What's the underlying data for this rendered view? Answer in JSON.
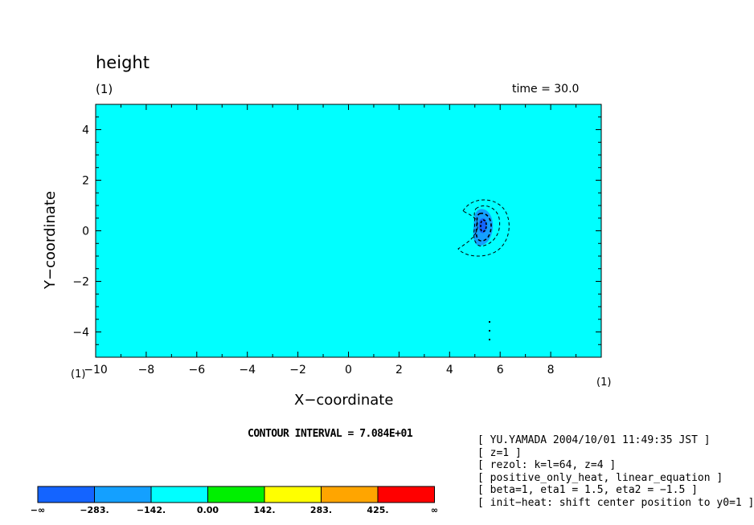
{
  "chart_data": {
    "type": "contour",
    "title": "height",
    "subtitle_left": "(1)",
    "subtitle_right": "time = 30.0",
    "xlabel": "X−coordinate",
    "ylabel": "Y−coordinate",
    "x_corner": "(1)",
    "y_corner": "(1)",
    "xlim": [
      -10,
      10
    ],
    "ylim": [
      -5,
      5
    ],
    "xticks": [
      -10,
      -8,
      -6,
      -4,
      -2,
      0,
      2,
      4,
      6,
      8
    ],
    "xtick_labels": [
      "−10",
      "−8",
      "−6",
      "−4",
      "−2",
      "0",
      "2",
      "4",
      "6",
      "8"
    ],
    "yticks": [
      -4,
      -2,
      0,
      2,
      4
    ],
    "ytick_labels": [
      "−4",
      "−2",
      "0",
      "2",
      "4"
    ],
    "grid": false,
    "contour_interval": "CONTOUR INTERVAL = 7.084E+01",
    "feature": {
      "center": [
        5.3,
        0.1
      ],
      "min_level_reached": -283,
      "sign": "negative, dashed contours"
    },
    "colorbar": {
      "colors": [
        "#1464ff",
        "#14a0ff",
        "#00ffff",
        "#00f000",
        "#ffff00",
        "#ffa500",
        "#ff0000"
      ],
      "labels": [
        "−∞",
        "−283.",
        "−142.",
        "0.00",
        "142.",
        "283.",
        "425.",
        "∞"
      ]
    },
    "field_color": "#00ffff"
  },
  "info_lines": [
    "[ YU.YAMADA 2004/10/01 11:49:35 JST ]",
    "[ z=1 ]",
    "[ rezol: k=l=64, z=4 ]",
    "[ positive_only_heat, linear_equation ]",
    "[ beta=1, eta1 = 1.5, eta2 = −1.5 ]",
    "[ init−heat: shift center position to y0=1 ]"
  ]
}
